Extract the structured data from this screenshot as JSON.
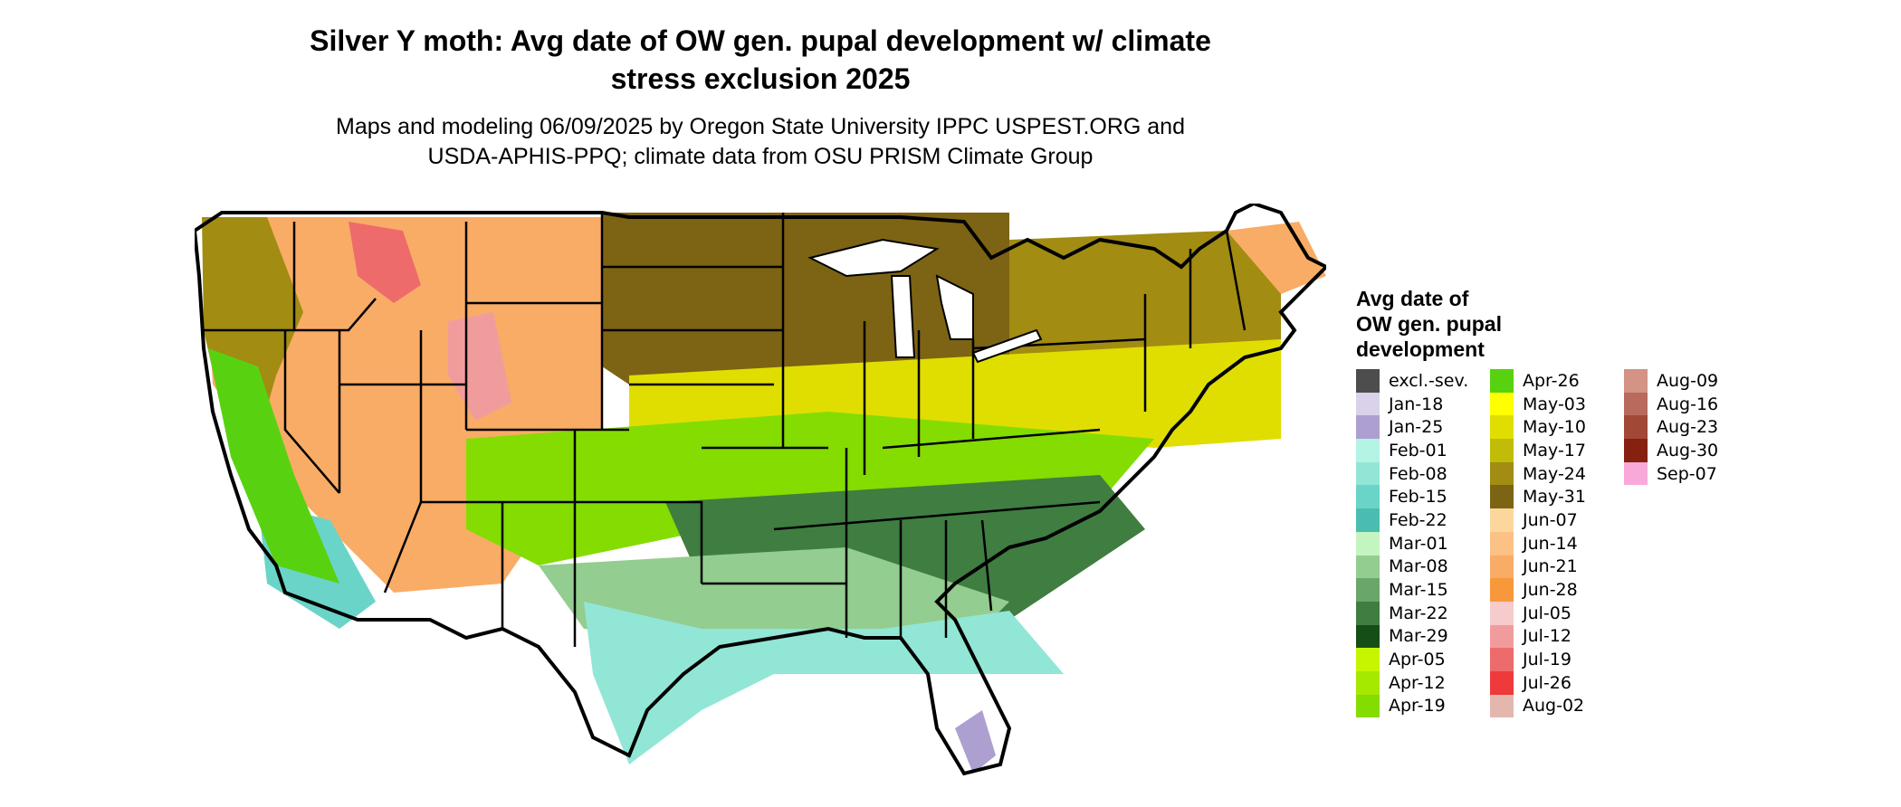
{
  "title_line1": "Silver Y moth: Avg date of OW gen. pupal development w/ climate",
  "title_line2": "stress exclusion 2025",
  "subtitle_line1": "Maps and modeling 06/09/2025 by Oregon State University IPPC USPEST.ORG and",
  "subtitle_line2": "USDA-APHIS-PPQ; climate data from OSU PRISM Climate Group",
  "legend": {
    "title_line1": "Avg date of",
    "title_line2": "OW gen. pupal",
    "title_line3": "development",
    "columns": [
      [
        {
          "label": "excl.-sev.",
          "color": "#4d4d4d"
        },
        {
          "label": "Jan-18",
          "color": "#d9d2ea"
        },
        {
          "label": "Jan-25",
          "color": "#ad9fcf"
        },
        {
          "label": "Feb-01",
          "color": "#b4f4e4"
        },
        {
          "label": "Feb-08",
          "color": "#92e6d6"
        },
        {
          "label": "Feb-15",
          "color": "#6ad4c8"
        },
        {
          "label": "Feb-22",
          "color": "#4bbcb0"
        },
        {
          "label": "Mar-01",
          "color": "#c4f5c0"
        },
        {
          "label": "Mar-08",
          "color": "#93cd8f"
        },
        {
          "label": "Mar-15",
          "color": "#6aa56a"
        },
        {
          "label": "Mar-22",
          "color": "#3f7d40"
        },
        {
          "label": "Mar-29",
          "color": "#174d17"
        },
        {
          "label": "Apr-05",
          "color": "#c6f500"
        },
        {
          "label": "Apr-12",
          "color": "#a6e800"
        },
        {
          "label": "Apr-19",
          "color": "#84dc00"
        }
      ],
      [
        {
          "label": "Apr-26",
          "color": "#58d210"
        },
        {
          "label": "May-03",
          "color": "#ffff00"
        },
        {
          "label": "May-10",
          "color": "#e0de00"
        },
        {
          "label": "May-17",
          "color": "#c0bc08"
        },
        {
          "label": "May-24",
          "color": "#a28c12"
        },
        {
          "label": "May-31",
          "color": "#7d6314"
        },
        {
          "label": "Jun-07",
          "color": "#fcd79d"
        },
        {
          "label": "Jun-14",
          "color": "#fbc185"
        },
        {
          "label": "Jun-21",
          "color": "#f9ac66"
        },
        {
          "label": "Jun-28",
          "color": "#f7983b"
        },
        {
          "label": "Jul-05",
          "color": "#f5cbcb"
        },
        {
          "label": "Jul-12",
          "color": "#f19c9c"
        },
        {
          "label": "Jul-19",
          "color": "#ee6b6b"
        },
        {
          "label": "Jul-26",
          "color": "#ee3a3a"
        },
        {
          "label": "Aug-02",
          "color": "#e3b7ae"
        }
      ],
      [
        {
          "label": "Aug-09",
          "color": "#d39385"
        },
        {
          "label": "Aug-16",
          "color": "#b86b5c"
        },
        {
          "label": "Aug-23",
          "color": "#a14837"
        },
        {
          "label": "Aug-30",
          "color": "#85210e"
        },
        {
          "label": "Sep-07",
          "color": "#f9a9d9"
        }
      ]
    ]
  }
}
